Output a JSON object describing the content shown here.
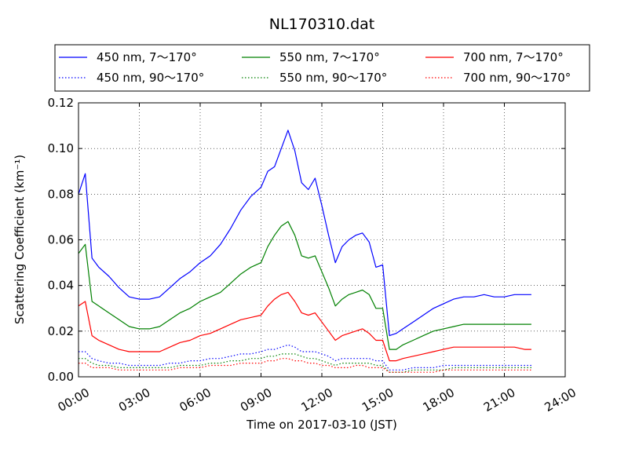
{
  "chart_data": {
    "type": "line",
    "title": "NL170310.dat",
    "xlabel": "Time on 2017-03-10 (JST)",
    "ylabel": "Scattering Coefficient (km⁻¹)",
    "xlim": [
      "00:00",
      "24:00"
    ],
    "ylim": [
      0,
      0.12
    ],
    "grid": true,
    "legend_position": "top, above plot",
    "x_tick_labels": [
      "00:00",
      "03:00",
      "06:00",
      "09:00",
      "12:00",
      "15:00",
      "18:00",
      "21:00",
      "24:00"
    ],
    "y_tick_labels": [
      "0.00",
      "0.02",
      "0.04",
      "0.06",
      "0.08",
      "0.10",
      "0.12"
    ],
    "x": [
      "00:00",
      "00:20",
      "00:40",
      "01:00",
      "01:30",
      "02:00",
      "02:30",
      "03:00",
      "03:30",
      "04:00",
      "04:30",
      "05:00",
      "05:30",
      "06:00",
      "06:30",
      "07:00",
      "07:30",
      "08:00",
      "08:30",
      "09:00",
      "09:20",
      "09:40",
      "10:00",
      "10:20",
      "10:40",
      "11:00",
      "11:20",
      "11:40",
      "12:00",
      "12:20",
      "12:40",
      "13:00",
      "13:20",
      "13:40",
      "14:00",
      "14:20",
      "14:40",
      "15:00",
      "15:20",
      "15:40",
      "16:00",
      "16:30",
      "17:00",
      "17:30",
      "18:00",
      "18:30",
      "19:00",
      "19:30",
      "20:00",
      "20:30",
      "21:00",
      "21:30",
      "22:00",
      "22:20"
    ],
    "series": [
      {
        "name": "450 nm, 7～170°",
        "color": "#0000ff",
        "style": "solid",
        "values": [
          0.08,
          0.089,
          0.052,
          0.048,
          0.044,
          0.039,
          0.035,
          0.034,
          0.034,
          0.035,
          0.039,
          0.043,
          0.046,
          0.05,
          0.053,
          0.058,
          0.065,
          0.073,
          0.079,
          0.083,
          0.09,
          0.092,
          0.1,
          0.108,
          0.099,
          0.085,
          0.082,
          0.087,
          0.075,
          0.062,
          0.05,
          0.057,
          0.06,
          0.062,
          0.063,
          0.059,
          0.048,
          0.049,
          0.018,
          0.019,
          0.021,
          0.024,
          0.027,
          0.03,
          0.032,
          0.034,
          0.035,
          0.035,
          0.036,
          0.035,
          0.035,
          0.036,
          0.036,
          0.036
        ]
      },
      {
        "name": "550 nm, 7～170°",
        "color": "#008000",
        "style": "solid",
        "values": [
          0.054,
          0.058,
          0.033,
          0.031,
          0.028,
          0.025,
          0.022,
          0.021,
          0.021,
          0.022,
          0.025,
          0.028,
          0.03,
          0.033,
          0.035,
          0.037,
          0.041,
          0.045,
          0.048,
          0.05,
          0.057,
          0.062,
          0.066,
          0.068,
          0.062,
          0.053,
          0.052,
          0.053,
          0.046,
          0.039,
          0.031,
          0.034,
          0.036,
          0.037,
          0.038,
          0.036,
          0.03,
          0.03,
          0.012,
          0.012,
          0.014,
          0.016,
          0.018,
          0.02,
          0.021,
          0.022,
          0.023,
          0.023,
          0.023,
          0.023,
          0.023,
          0.023,
          0.023,
          0.023
        ]
      },
      {
        "name": "700 nm, 7～170°",
        "color": "#ff0000",
        "style": "solid",
        "values": [
          0.031,
          0.033,
          0.018,
          0.016,
          0.014,
          0.012,
          0.011,
          0.011,
          0.011,
          0.011,
          0.013,
          0.015,
          0.016,
          0.018,
          0.019,
          0.021,
          0.023,
          0.025,
          0.026,
          0.027,
          0.031,
          0.034,
          0.036,
          0.037,
          0.033,
          0.028,
          0.027,
          0.028,
          0.024,
          0.02,
          0.016,
          0.018,
          0.019,
          0.02,
          0.021,
          0.019,
          0.016,
          0.016,
          0.007,
          0.007,
          0.008,
          0.009,
          0.01,
          0.011,
          0.012,
          0.013,
          0.013,
          0.013,
          0.013,
          0.013,
          0.013,
          0.013,
          0.012,
          0.012
        ]
      },
      {
        "name": "450 nm, 90～170°",
        "color": "#0000ff",
        "style": "dotted",
        "values": [
          0.011,
          0.011,
          0.008,
          0.007,
          0.006,
          0.006,
          0.005,
          0.005,
          0.005,
          0.005,
          0.006,
          0.006,
          0.007,
          0.007,
          0.008,
          0.008,
          0.009,
          0.01,
          0.01,
          0.011,
          0.012,
          0.012,
          0.013,
          0.014,
          0.013,
          0.011,
          0.011,
          0.011,
          0.01,
          0.009,
          0.007,
          0.008,
          0.008,
          0.008,
          0.008,
          0.008,
          0.007,
          0.007,
          0.003,
          0.003,
          0.003,
          0.004,
          0.004,
          0.004,
          0.005,
          0.005,
          0.005,
          0.005,
          0.005,
          0.005,
          0.005,
          0.005,
          0.005,
          0.005
        ]
      },
      {
        "name": "550 nm, 90～170°",
        "color": "#008000",
        "style": "dotted",
        "values": [
          0.008,
          0.008,
          0.006,
          0.005,
          0.005,
          0.004,
          0.004,
          0.004,
          0.004,
          0.004,
          0.004,
          0.005,
          0.005,
          0.005,
          0.006,
          0.006,
          0.007,
          0.007,
          0.008,
          0.008,
          0.009,
          0.009,
          0.01,
          0.01,
          0.01,
          0.009,
          0.008,
          0.008,
          0.007,
          0.006,
          0.005,
          0.006,
          0.006,
          0.006,
          0.006,
          0.006,
          0.005,
          0.005,
          0.002,
          0.002,
          0.002,
          0.003,
          0.003,
          0.003,
          0.003,
          0.004,
          0.004,
          0.004,
          0.004,
          0.004,
          0.004,
          0.004,
          0.004,
          0.004
        ]
      },
      {
        "name": "700 nm, 90～170°",
        "color": "#ff0000",
        "style": "dotted",
        "values": [
          0.006,
          0.006,
          0.004,
          0.004,
          0.004,
          0.003,
          0.003,
          0.003,
          0.003,
          0.003,
          0.003,
          0.004,
          0.004,
          0.004,
          0.005,
          0.005,
          0.005,
          0.006,
          0.006,
          0.006,
          0.007,
          0.007,
          0.008,
          0.008,
          0.007,
          0.007,
          0.006,
          0.006,
          0.005,
          0.005,
          0.004,
          0.004,
          0.004,
          0.005,
          0.005,
          0.004,
          0.004,
          0.004,
          0.002,
          0.002,
          0.002,
          0.002,
          0.002,
          0.002,
          0.003,
          0.003,
          0.003,
          0.003,
          0.003,
          0.003,
          0.003,
          0.003,
          0.003,
          0.003
        ]
      }
    ],
    "legend_order": [
      0,
      1,
      2,
      3,
      4,
      5
    ]
  }
}
